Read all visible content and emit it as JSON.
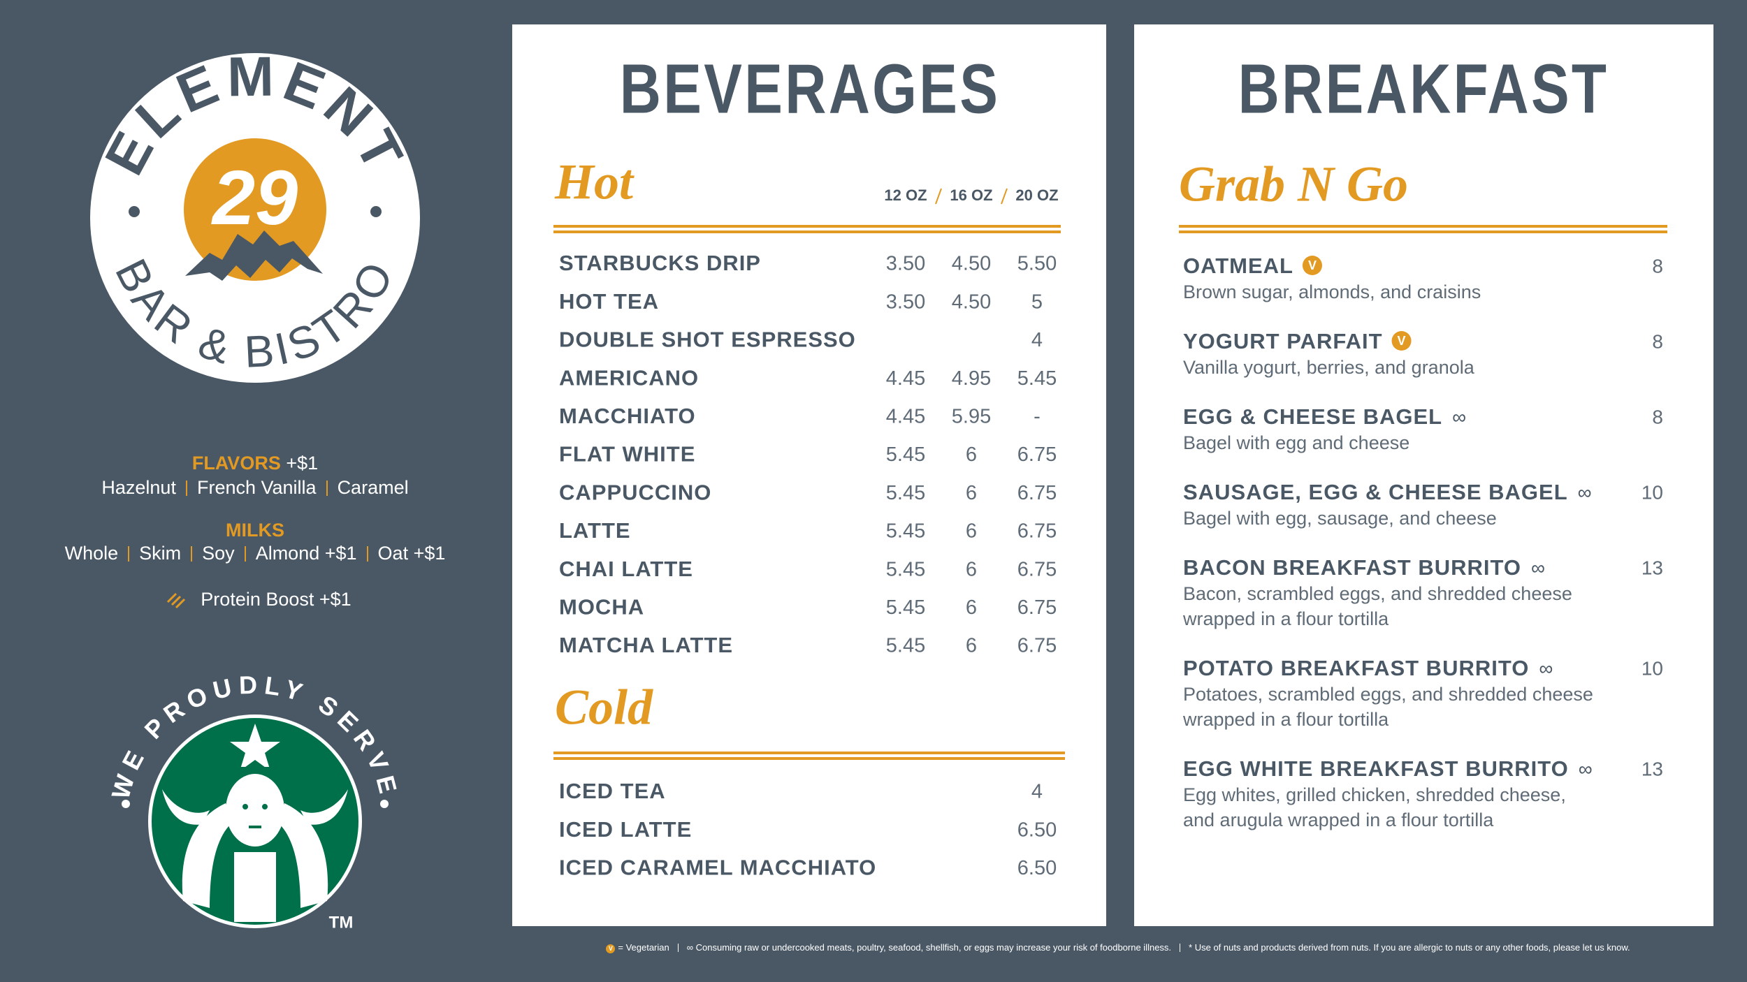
{
  "logo": {
    "name": "ELEMENT",
    "number": "29",
    "subtitle": "BAR & BISTRO"
  },
  "addons": {
    "flavors": {
      "label": "FLAVORS",
      "price": "+$1",
      "options": [
        "Hazelnut",
        "French Vanilla",
        "Caramel"
      ]
    },
    "milks": {
      "label": "MILKS",
      "options": [
        "Whole",
        "Skim",
        "Soy",
        "Almond +$1",
        "Oat +$1"
      ]
    },
    "protein": "Protein Boost +$1"
  },
  "starbucks": {
    "tagline": "WE PROUDLY SERVE",
    "trademark": "TM"
  },
  "beverages": {
    "title": "BEVERAGES",
    "sections": [
      {
        "name": "Hot",
        "sizes": [
          "12 OZ",
          "16 OZ",
          "20 OZ"
        ],
        "items": [
          {
            "name": "STARBUCKS DRIP",
            "prices": [
              "3.50",
              "4.50",
              "5.50"
            ]
          },
          {
            "name": "HOT TEA",
            "prices": [
              "3.50",
              "4.50",
              "5"
            ]
          },
          {
            "name": "DOUBLE SHOT ESPRESSO",
            "prices": [
              null,
              null,
              "4"
            ]
          },
          {
            "name": "AMERICANO",
            "prices": [
              "4.45",
              "4.95",
              "5.45"
            ]
          },
          {
            "name": "MACCHIATO",
            "prices": [
              "4.45",
              "5.95",
              "-"
            ]
          },
          {
            "name": "FLAT WHITE",
            "prices": [
              "5.45",
              "6",
              "6.75"
            ]
          },
          {
            "name": "CAPPUCCINO",
            "prices": [
              "5.45",
              "6",
              "6.75"
            ]
          },
          {
            "name": "LATTE",
            "prices": [
              "5.45",
              "6",
              "6.75"
            ]
          },
          {
            "name": "CHAI LATTE",
            "prices": [
              "5.45",
              "6",
              "6.75"
            ]
          },
          {
            "name": "MOCHA",
            "prices": [
              "5.45",
              "6",
              "6.75"
            ]
          },
          {
            "name": "MATCHA LATTE",
            "prices": [
              "5.45",
              "6",
              "6.75"
            ]
          }
        ]
      },
      {
        "name": "Cold",
        "items": [
          {
            "name": "ICED TEA",
            "prices": [
              null,
              null,
              "4"
            ]
          },
          {
            "name": "ICED LATTE",
            "prices": [
              null,
              null,
              "6.50"
            ]
          },
          {
            "name": "ICED CARAMEL MACCHIATO",
            "prices": [
              null,
              null,
              "6.50"
            ]
          }
        ]
      }
    ]
  },
  "breakfast": {
    "title": "BREAKFAST",
    "section": "Grab N Go",
    "items": [
      {
        "name": "OATMEAL",
        "badge": "V",
        "price": "8",
        "description": [
          "Brown sugar, almonds, and craisins"
        ]
      },
      {
        "name": "YOGURT PARFAIT",
        "badge": "V",
        "price": "8",
        "description": [
          "Vanilla yogurt, berries, and granola"
        ]
      },
      {
        "name": "EGG & CHEESE BAGEL",
        "marker": "∞",
        "price": "8",
        "description": [
          "Bagel with egg and cheese"
        ]
      },
      {
        "name": "SAUSAGE, EGG & CHEESE BAGEL",
        "marker": "∞",
        "price": "10",
        "description": [
          "Bagel with egg, sausage, and cheese"
        ]
      },
      {
        "name": "BACON BREAKFAST BURRITO",
        "marker": "∞",
        "price": "13",
        "description": [
          "Bacon, scrambled eggs, and shredded cheese",
          "wrapped in a flour tortilla"
        ]
      },
      {
        "name": "POTATO BREAKFAST BURRITO",
        "marker": "∞",
        "price": "10",
        "description": [
          "Potatoes, scrambled eggs, and shredded cheese",
          "wrapped in a flour tortilla"
        ]
      },
      {
        "name": "EGG WHITE BREAKFAST BURRITO",
        "marker": "∞",
        "price": "13",
        "description": [
          "Egg whites, grilled chicken, shredded cheese,",
          "and arugula wrapped in a flour tortilla"
        ]
      }
    ]
  },
  "footer": {
    "vegetarian": {
      "badge": "V",
      "text": "= Vegetarian"
    },
    "raw": "∞ Consuming raw or undercooked meats, poultry, seafood, shellfish, or eggs may increase your risk of foodborne illness.",
    "nuts": "* Use of nuts and products derived from nuts. If you are allergic to nuts or any other foods, please let us know."
  }
}
